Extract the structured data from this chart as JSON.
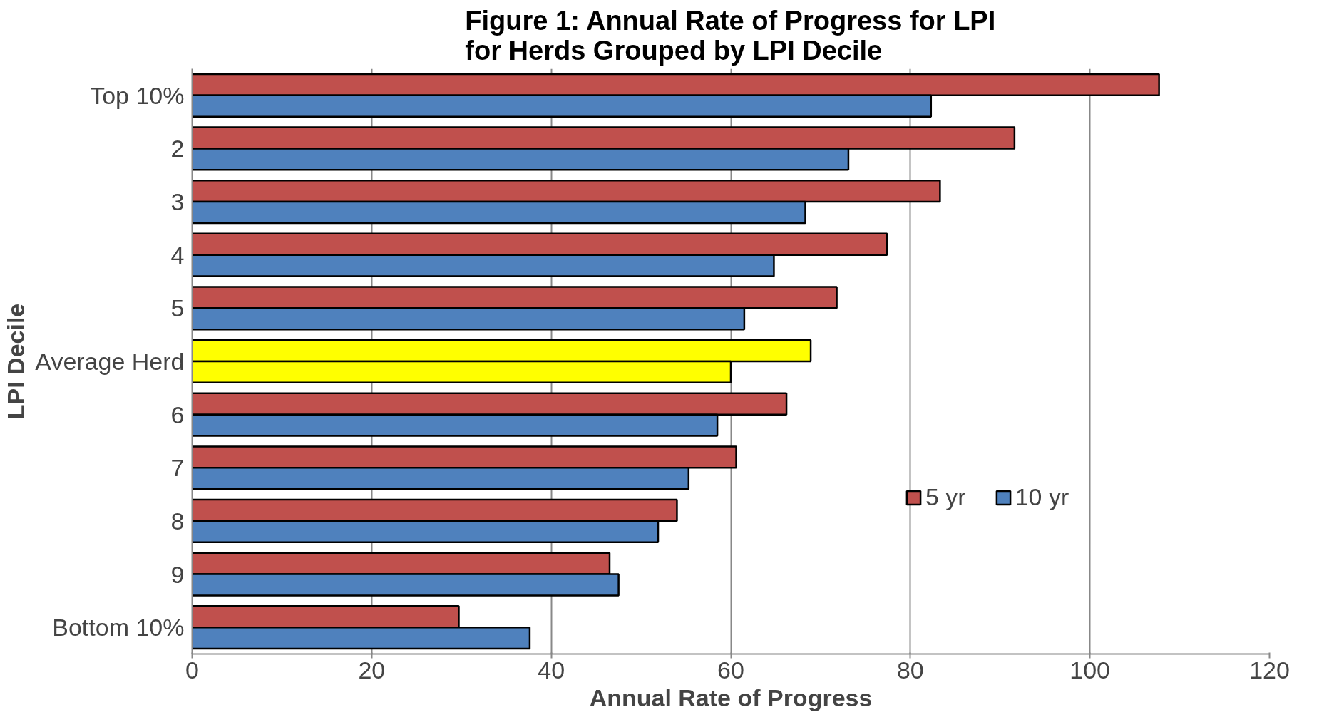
{
  "chart_data": {
    "type": "bar",
    "orientation": "horizontal",
    "title": "Figure 1: Annual Rate of Progress for LPI\nfor Herds Grouped by LPI Decile",
    "xlabel": "Annual Rate of Progress",
    "ylabel": "LPI Decile",
    "categories": [
      "Top 10%",
      "2",
      "3",
      "4",
      "5",
      "Average Herd",
      "6",
      "7",
      "8",
      "9",
      "Bottom 10%"
    ],
    "series": [
      {
        "name": "5 yr",
        "color": "#c0504d",
        "colors": [
          null,
          null,
          null,
          null,
          null,
          "#ffff00",
          null,
          null,
          null,
          null,
          null
        ],
        "values": [
          107.7,
          91.6,
          83.3,
          77.4,
          71.8,
          68.9,
          66.2,
          60.6,
          54.0,
          46.5,
          29.7
        ]
      },
      {
        "name": "10 yr",
        "color": "#4f81bd",
        "colors": [
          null,
          null,
          null,
          null,
          null,
          "#ffff00",
          null,
          null,
          null,
          null,
          null
        ],
        "values": [
          82.3,
          73.1,
          68.3,
          64.8,
          61.5,
          60.0,
          58.5,
          55.3,
          51.9,
          47.5,
          37.6
        ]
      }
    ],
    "xlim": [
      0,
      120
    ],
    "xticks": [
      0,
      20,
      40,
      60,
      80,
      100,
      120
    ],
    "grid": "x",
    "legend": "right"
  }
}
